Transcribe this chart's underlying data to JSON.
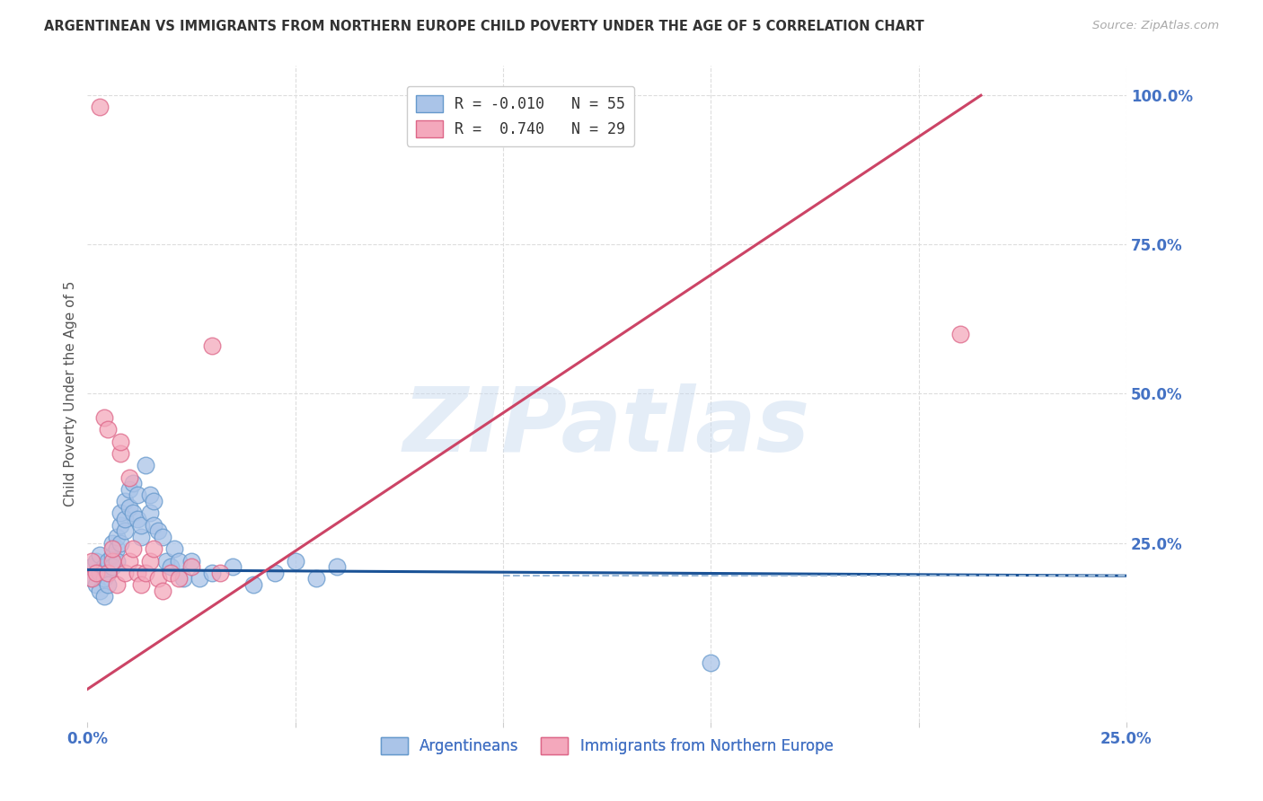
{
  "title": "ARGENTINEAN VS IMMIGRANTS FROM NORTHERN EUROPE CHILD POVERTY UNDER THE AGE OF 5 CORRELATION CHART",
  "source": "Source: ZipAtlas.com",
  "ylabel": "Child Poverty Under the Age of 5",
  "watermark": "ZIPatlas",
  "legend_entries": [
    {
      "label": "R = -0.010   N = 55",
      "color": "#aac4e8"
    },
    {
      "label": "R =  0.740   N = 29",
      "color": "#f4a8bc"
    }
  ],
  "legend_labels": [
    "Argentineans",
    "Immigrants from Northern Europe"
  ],
  "blue_scatter_x": [
    0.001,
    0.001,
    0.002,
    0.002,
    0.003,
    0.003,
    0.003,
    0.004,
    0.004,
    0.004,
    0.005,
    0.005,
    0.005,
    0.006,
    0.006,
    0.006,
    0.007,
    0.007,
    0.007,
    0.008,
    0.008,
    0.008,
    0.009,
    0.009,
    0.009,
    0.01,
    0.01,
    0.011,
    0.011,
    0.012,
    0.012,
    0.013,
    0.013,
    0.014,
    0.015,
    0.015,
    0.016,
    0.016,
    0.017,
    0.018,
    0.019,
    0.02,
    0.021,
    0.022,
    0.023,
    0.025,
    0.027,
    0.03,
    0.035,
    0.04,
    0.045,
    0.05,
    0.055,
    0.06,
    0.15
  ],
  "blue_scatter_y": [
    0.19,
    0.21,
    0.18,
    0.22,
    0.17,
    0.2,
    0.23,
    0.19,
    0.21,
    0.16,
    0.2,
    0.22,
    0.18,
    0.23,
    0.25,
    0.21,
    0.24,
    0.26,
    0.22,
    0.25,
    0.28,
    0.3,
    0.27,
    0.29,
    0.32,
    0.31,
    0.34,
    0.3,
    0.35,
    0.29,
    0.33,
    0.26,
    0.28,
    0.38,
    0.3,
    0.33,
    0.28,
    0.32,
    0.27,
    0.26,
    0.22,
    0.21,
    0.24,
    0.22,
    0.19,
    0.22,
    0.19,
    0.2,
    0.21,
    0.18,
    0.2,
    0.22,
    0.19,
    0.21,
    0.05
  ],
  "pink_scatter_x": [
    0.001,
    0.001,
    0.002,
    0.003,
    0.004,
    0.005,
    0.005,
    0.006,
    0.006,
    0.007,
    0.008,
    0.008,
    0.009,
    0.01,
    0.01,
    0.011,
    0.012,
    0.013,
    0.014,
    0.015,
    0.016,
    0.017,
    0.018,
    0.02,
    0.022,
    0.025,
    0.03,
    0.032,
    0.21
  ],
  "pink_scatter_y": [
    0.19,
    0.22,
    0.2,
    0.98,
    0.46,
    0.44,
    0.2,
    0.22,
    0.24,
    0.18,
    0.4,
    0.42,
    0.2,
    0.36,
    0.22,
    0.24,
    0.2,
    0.18,
    0.2,
    0.22,
    0.24,
    0.19,
    0.17,
    0.2,
    0.19,
    0.21,
    0.58,
    0.2,
    0.6
  ],
  "blue_line_x": [
    0.0,
    0.25
  ],
  "blue_line_y": [
    0.205,
    0.195
  ],
  "pink_line_x": [
    0.0,
    0.215
  ],
  "pink_line_y": [
    0.005,
    1.0
  ],
  "dashed_line_x": [
    0.1,
    0.25
  ],
  "dashed_line_y": [
    0.195,
    0.195
  ],
  "xlim": [
    0.0,
    0.25
  ],
  "ylim": [
    -0.05,
    1.05
  ],
  "ytick_grid": [
    0.25,
    0.5,
    0.75,
    1.0
  ],
  "xtick_grid": [
    0.05,
    0.1,
    0.15,
    0.2,
    0.25
  ],
  "grid_color": "#dddddd",
  "blue_color": "#aac4e8",
  "blue_edge_color": "#6699cc",
  "pink_color": "#f4a8bc",
  "pink_edge_color": "#dd6688",
  "blue_line_color": "#1a5296",
  "pink_line_color": "#cc4466",
  "dashed_line_color": "#99b8d8",
  "axis_color": "#4472c4",
  "title_color": "#333333",
  "source_color": "#aaaaaa",
  "scatter_size": 180
}
